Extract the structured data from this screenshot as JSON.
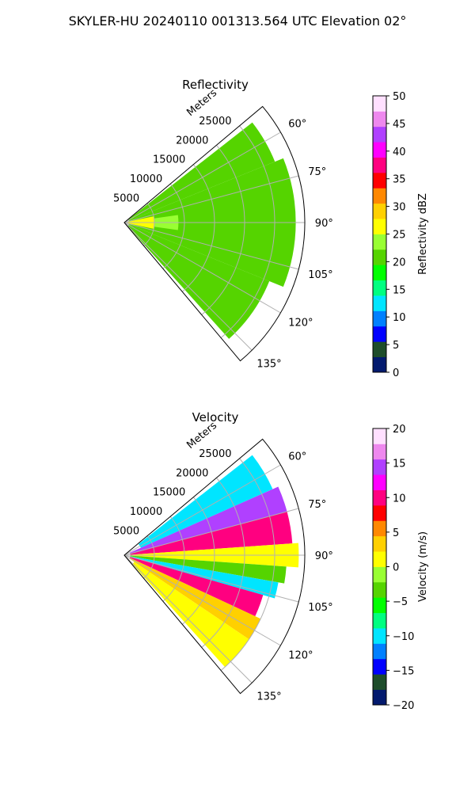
{
  "title": "SKYLER-HU  20240110  001313.564 UTC Elevation 02°",
  "colors": {
    "grid": "#b0b0b0",
    "frame": "#000000"
  },
  "chart_data": [
    {
      "type": "heatmap",
      "subtype": "polar-sector (PPI)",
      "title": "Reflectivity",
      "r_label": "Meters",
      "r_ticks": [
        "5000",
        "10000",
        "15000",
        "20000",
        "25000"
      ],
      "r_tick_values": [
        5000,
        10000,
        15000,
        20000,
        25000
      ],
      "r_max": 30000,
      "azimuth_range": [
        50,
        140
      ],
      "theta_ticks": [
        "60°",
        "75°",
        "90°",
        "105°",
        "120°",
        "135°"
      ],
      "theta_tick_values": [
        60,
        75,
        90,
        105,
        120,
        135
      ],
      "grid": true,
      "colorbar": {
        "label": "Reflectivity dBZ",
        "vmin": 0,
        "vmax": 50,
        "ticks": [
          "0",
          "5",
          "10",
          "15",
          "20",
          "25",
          "30",
          "35",
          "40",
          "45",
          "50"
        ],
        "tick_values": [
          0,
          5,
          10,
          15,
          20,
          25,
          30,
          35,
          40,
          45,
          50
        ],
        "colormap": [
          "#031a6e",
          "#1e4d2b",
          "#0000ff",
          "#0080ff",
          "#00e5ff",
          "#00ff80",
          "#00ff00",
          "#55d400",
          "#99ff33",
          "#ffff00",
          "#ffd000",
          "#ff8800",
          "#ff0000",
          "#ff0080",
          "#ff00ff",
          "#b040ff",
          "#ee88ee",
          "#ffe0ff"
        ]
      },
      "data_regions": [
        {
          "az": [
            52,
            68
          ],
          "r": [
            800,
            27000
          ],
          "value": 20
        },
        {
          "az": [
            68,
            112
          ],
          "r": [
            800,
            28500
          ],
          "value": 20
        },
        {
          "az": [
            112,
            138
          ],
          "r": [
            800,
            26000
          ],
          "value": 20
        },
        {
          "az": [
            78,
            102
          ],
          "r": [
            0,
            5000
          ],
          "value": 27
        },
        {
          "az": [
            82,
            98
          ],
          "r": [
            5000,
            9000
          ],
          "value": 24
        }
      ]
    },
    {
      "type": "heatmap",
      "subtype": "polar-sector (PPI)",
      "title": "Velocity",
      "r_label": "Meters",
      "r_ticks": [
        "5000",
        "10000",
        "15000",
        "20000",
        "25000"
      ],
      "r_tick_values": [
        5000,
        10000,
        15000,
        20000,
        25000
      ],
      "r_max": 30000,
      "azimuth_range": [
        50,
        140
      ],
      "theta_ticks": [
        "60°",
        "75°",
        "90°",
        "105°",
        "120°",
        "135°"
      ],
      "theta_tick_values": [
        60,
        75,
        90,
        105,
        120,
        135
      ],
      "grid": true,
      "colorbar": {
        "label": "Velocity (m/s)",
        "vmin": -20,
        "vmax": 20,
        "ticks": [
          "−20",
          "−15",
          "−10",
          "−5",
          "0",
          "5",
          "10",
          "15",
          "20"
        ],
        "tick_values": [
          -20,
          -15,
          -10,
          -5,
          0,
          5,
          10,
          15,
          20
        ],
        "colormap": [
          "#031a6e",
          "#1e4d2b",
          "#0000ff",
          "#0080ff",
          "#00e5ff",
          "#00ff80",
          "#00ff00",
          "#55d400",
          "#99ff33",
          "#ffff00",
          "#ffd000",
          "#ff8800",
          "#ff0000",
          "#ff0080",
          "#ff00ff",
          "#b040ff",
          "#ee88ee",
          "#ffe0ff"
        ]
      },
      "data_regions": [
        {
          "az": [
            52,
            66
          ],
          "r": [
            3000,
            27000
          ],
          "value": -10
        },
        {
          "az": [
            66,
            75
          ],
          "r": [
            1000,
            28000
          ],
          "value": 14
        },
        {
          "az": [
            75,
            86
          ],
          "r": [
            1000,
            28000
          ],
          "value": 10
        },
        {
          "az": [
            86,
            94
          ],
          "r": [
            1000,
            29000
          ],
          "value": 1
        },
        {
          "az": [
            94,
            100
          ],
          "r": [
            1000,
            27000
          ],
          "value": -4
        },
        {
          "az": [
            100,
            106
          ],
          "r": [
            1000,
            26000
          ],
          "value": -11
        },
        {
          "az": [
            106,
            115
          ],
          "r": [
            1000,
            24000
          ],
          "value": 11
        },
        {
          "az": [
            115,
            124
          ],
          "r": [
            1000,
            25000
          ],
          "value": 3
        },
        {
          "az": [
            124,
            138
          ],
          "r": [
            2000,
            25000
          ],
          "value": 1
        }
      ]
    }
  ]
}
